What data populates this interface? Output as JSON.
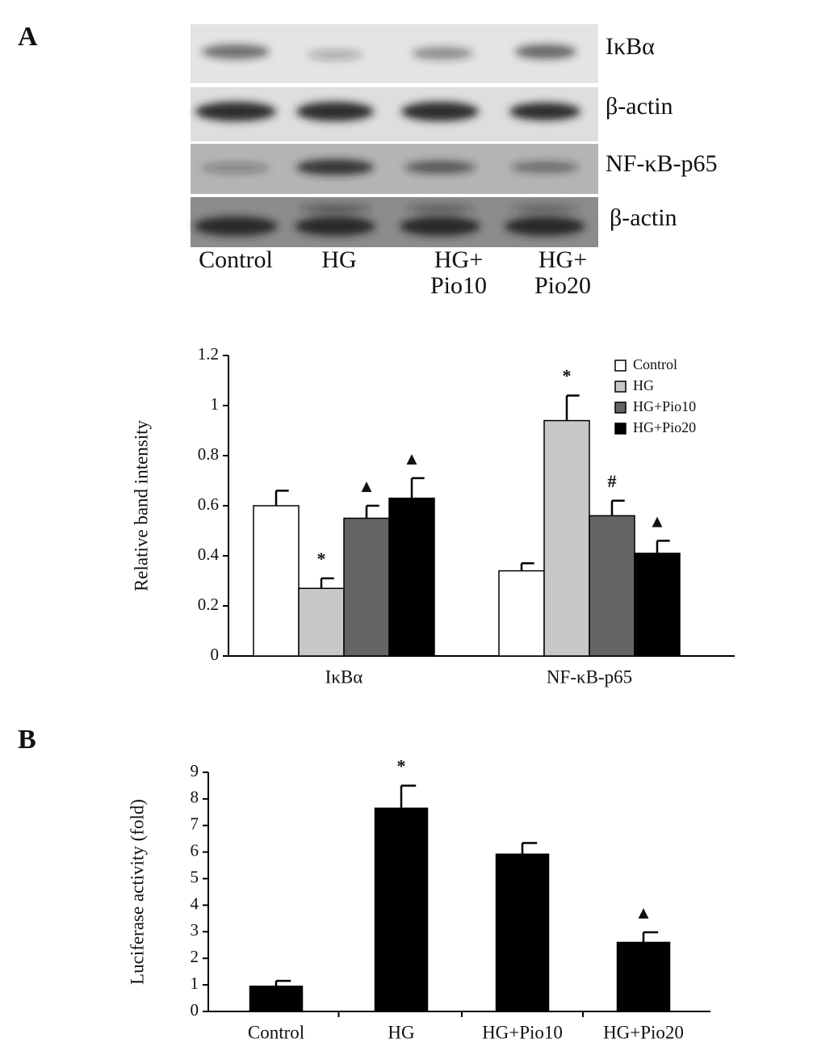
{
  "panel_labels": [
    "A",
    "B"
  ],
  "blot": {
    "row_labels": [
      "IκBα",
      "β-actin",
      "NF-κB-p65",
      "β-actin"
    ],
    "lane_labels": [
      [
        "Control"
      ],
      [
        "HG"
      ],
      [
        "HG+",
        "Pio10"
      ],
      [
        "HG+",
        "Pio20"
      ]
    ]
  },
  "chart_data": [
    {
      "type": "bar",
      "y_label": "Relative band intensity",
      "categories": [
        "IκBα",
        "NF-κB-p65"
      ],
      "series": [
        {
          "name": "Control",
          "color": "#ffffff",
          "values": [
            0.6,
            0.34
          ],
          "errors": [
            0.06,
            0.03
          ],
          "annotations": [
            null,
            null
          ]
        },
        {
          "name": "HG",
          "color": "#c8c8c8",
          "values": [
            0.27,
            0.94
          ],
          "errors": [
            0.04,
            0.1
          ],
          "annotations": [
            "*",
            "*"
          ]
        },
        {
          "name": "HG+Pio10",
          "color": "#646464",
          "values": [
            0.55,
            0.56
          ],
          "errors": [
            0.05,
            0.06
          ],
          "annotations": [
            "▲",
            "#"
          ]
        },
        {
          "name": "HG+Pio20",
          "color": "#000000",
          "values": [
            0.63,
            0.41
          ],
          "errors": [
            0.08,
            0.05
          ],
          "annotations": [
            "▲",
            "▲"
          ]
        }
      ],
      "ylim": [
        0,
        1.2
      ],
      "yticks": [
        0,
        0.2,
        0.4,
        0.6,
        0.8,
        1,
        1.2
      ],
      "legend": "top-right"
    },
    {
      "type": "bar",
      "y_label": "Luciferase activity (fold)",
      "categories": [
        "Control",
        "HG",
        "HG+Pio10",
        "HG+Pio20"
      ],
      "values": [
        0.95,
        7.65,
        5.92,
        2.6
      ],
      "errors": [
        0.2,
        0.85,
        0.42,
        0.38
      ],
      "annotations": [
        null,
        "*",
        null,
        "▲"
      ],
      "color": "#000000",
      "ylim": [
        0,
        9
      ],
      "yticks": [
        0,
        1,
        2,
        3,
        4,
        5,
        6,
        7,
        8,
        9
      ]
    }
  ]
}
